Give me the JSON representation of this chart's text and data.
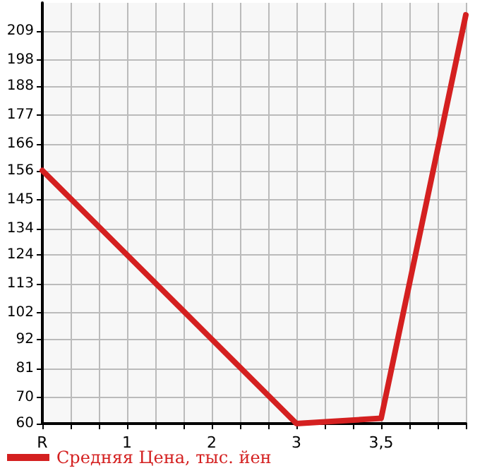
{
  "chart_data": {
    "type": "line",
    "categories": [
      "R",
      "1",
      "2",
      "3",
      "3,5",
      null
    ],
    "series": [
      {
        "name": "Средняя Цена, тыс. йен",
        "color": "#d42020",
        "values": [
          156,
          124,
          92,
          60,
          62,
          215
        ]
      }
    ],
    "ylim": [
      60,
      219.6
    ],
    "yticks": [
      60,
      70,
      81,
      92,
      102,
      113,
      124,
      134,
      145,
      156,
      166,
      177,
      188,
      198,
      209
    ],
    "grid": true,
    "legend": "bottom left",
    "marker": "none",
    "line_style": "solid"
  }
}
